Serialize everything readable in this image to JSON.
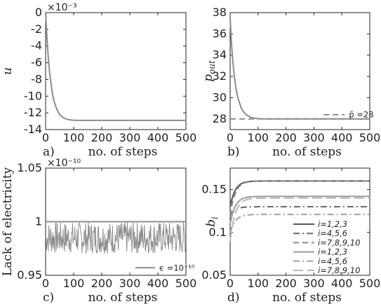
{
  "chart_data": [
    {
      "panel": "a)",
      "type": "line",
      "xlabel": "no. of steps",
      "ylabel": "u",
      "multiplier": "×10⁻³",
      "xlim": [
        0,
        500
      ],
      "ylim": [
        -14,
        0
      ],
      "xticks": [
        "0",
        "100",
        "200",
        "300",
        "400",
        "500"
      ],
      "yticks": [
        "0",
        "-2",
        "-4",
        "-6",
        "-8",
        "-10",
        "-12",
        "-14"
      ],
      "series": [
        {
          "color": "#8c8c8c",
          "style": "solid",
          "x": [
            0,
            5,
            10,
            15,
            20,
            25,
            30,
            40,
            50,
            60,
            70,
            80,
            90,
            100,
            120,
            150,
            200,
            300,
            400,
            500
          ],
          "y": [
            0,
            -3.2,
            -5.6,
            -7.4,
            -8.7,
            -9.8,
            -10.6,
            -11.6,
            -12.2,
            -12.5,
            -12.7,
            -12.8,
            -12.85,
            -12.88,
            -12.9,
            -12.9,
            -12.9,
            -12.9,
            -12.9,
            -12.9
          ]
        }
      ]
    },
    {
      "panel": "b)",
      "type": "line",
      "xlabel": "no. of steps",
      "ylabel": "p_out",
      "xlim": [
        0,
        500
      ],
      "ylim": [
        27,
        38
      ],
      "xticks": [
        "0",
        "100",
        "200",
        "300",
        "400",
        "500"
      ],
      "yticks": [
        "28",
        "30",
        "32",
        "34",
        "36",
        "38"
      ],
      "legend": "bottom-right",
      "legend_label": "p̄ =28",
      "series": [
        {
          "color": "#8c8c8c",
          "style": "solid",
          "x": [
            0,
            5,
            10,
            15,
            20,
            25,
            30,
            40,
            50,
            60,
            70,
            80,
            90,
            100,
            120,
            150,
            200,
            300,
            400,
            500
          ],
          "y": [
            37.5,
            35.0,
            33.3,
            32.0,
            31.0,
            30.3,
            29.8,
            29.0,
            28.6,
            28.35,
            28.2,
            28.1,
            28.06,
            28.03,
            28.01,
            28.0,
            28.0,
            28.0,
            28.0,
            28.0
          ]
        },
        {
          "color": "#8c8c8c",
          "style": "dashed",
          "name": "p̄ =28",
          "x": [
            0,
            500
          ],
          "y": [
            28,
            28
          ]
        }
      ]
    },
    {
      "panel": "c)",
      "type": "line",
      "xlabel": "no. of steps",
      "ylabel": "Lack of electricity",
      "multiplier": "×10⁻¹⁰",
      "xlim": [
        0,
        500
      ],
      "ylim": [
        0.95,
        1.05
      ],
      "xticks": [
        "0",
        "100",
        "200",
        "300",
        "400",
        "500"
      ],
      "yticks": [
        "0.95",
        "1",
        "1.05"
      ],
      "legend": "bottom-right",
      "legend_label": "ϵ =10⁻¹⁰",
      "series": [
        {
          "color": "#8c8c8c",
          "style": "solid",
          "name": "ϵ =10⁻¹⁰",
          "x_start": 0,
          "x_end": 500,
          "ybound": 1.0,
          "ymin": 0.97,
          "ymax": 1.0
        },
        {
          "color": "#8c8c8c",
          "style": "solid",
          "x": [
            0,
            500
          ],
          "y": [
            1.0,
            1.0
          ]
        }
      ]
    },
    {
      "panel": "d)",
      "type": "line",
      "xlabel": "no. of steps",
      "ylabel": "b_i",
      "xlim": [
        0,
        500
      ],
      "ylim": [
        0.05,
        0.175
      ],
      "xticks": [
        "0",
        "100",
        "200",
        "300",
        "400",
        "500"
      ],
      "yticks": [
        "0.05",
        "0.1",
        "0.15"
      ],
      "legend": "bottom-right",
      "series": [
        {
          "name": "i=1,2,3",
          "color": "#555555",
          "style": "solid",
          "start": 0.13,
          "final": 0.16
        },
        {
          "name": "i=4,5,6",
          "color": "#666666",
          "style": "dashdot",
          "start": 0.12,
          "final": 0.13
        },
        {
          "name": "i=7,8,9,10",
          "color": "#8a8a8a",
          "style": "dashed",
          "start": 0.12,
          "final": 0.16
        },
        {
          "name": "i=1,2,3",
          "color": "#9a9a9a",
          "style": "solid",
          "start": 0.11,
          "final": 0.142
        },
        {
          "name": "i=4,5,6",
          "color": "#a0a0a0",
          "style": "dashdot",
          "start": 0.1,
          "final": 0.121
        },
        {
          "name": "i=7,8,9,10",
          "color": "#b8b8b8",
          "style": "longdash",
          "start": 0.09,
          "final": 0.14
        }
      ]
    }
  ],
  "legend_text": {
    "b": "p̄ =28",
    "c": "ϵ =10⁻¹⁰",
    "d": [
      "i=1,2,3",
      "i=4,5,6",
      "i=7,8,9,10",
      "i=1,2,3",
      "i=4,5,6",
      "i=7,8,9,10"
    ]
  }
}
